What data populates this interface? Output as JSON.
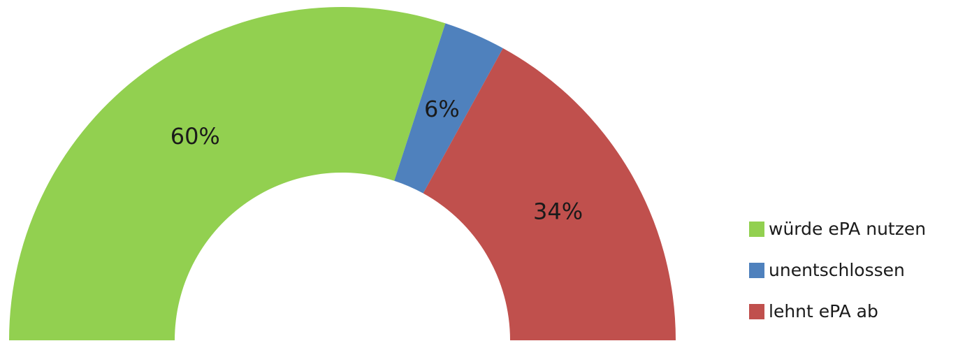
{
  "chart_data": {
    "type": "pie",
    "subtype": "semi-donut",
    "title": "",
    "slices": [
      {
        "label": "würde ePA nutzen",
        "value": 60,
        "display": "60%",
        "color": "#92d050"
      },
      {
        "label": "unentschlossen",
        "value": 6,
        "display": "6%",
        "color": "#4f81bd"
      },
      {
        "label": "lehnt ePA ab",
        "value": 34,
        "display": "34%",
        "color": "#c0504d"
      }
    ],
    "legend": {
      "placement": "bottom-right",
      "items": [
        "würde ePA nutzen",
        "unentschlossen",
        "lehnt ePA ab"
      ]
    },
    "label_color": "#1a1a1a"
  }
}
